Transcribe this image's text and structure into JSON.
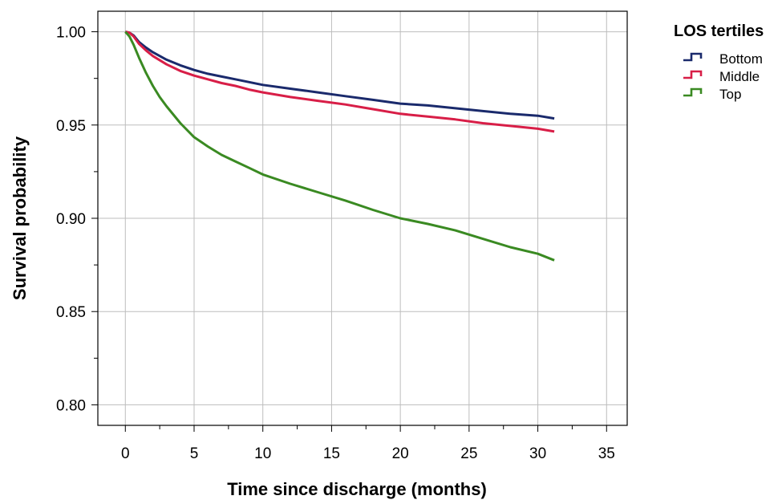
{
  "chart_data": {
    "type": "line",
    "title": "",
    "xlabel": "Time since discharge (months)",
    "ylabel": "Survival probability",
    "xlim": [
      -2,
      36.5
    ],
    "ylim": [
      0.789,
      1.011
    ],
    "x_ticks": [
      0,
      5,
      10,
      15,
      20,
      25,
      30,
      35
    ],
    "x_tick_labels": [
      "0",
      "5",
      "10",
      "15",
      "20",
      "25",
      "30",
      "35"
    ],
    "x_minor_ticks": [
      2.5,
      7.5,
      12.5,
      17.5,
      22.5,
      27.5,
      32.5
    ],
    "y_ticks": [
      0.8,
      0.85,
      0.9,
      0.95,
      1.0
    ],
    "y_tick_labels": [
      "0.80",
      "0.85",
      "0.90",
      "0.95",
      "1.00"
    ],
    "y_minor_ticks": [
      0.825,
      0.875,
      0.925,
      0.975
    ],
    "grid": true,
    "legend": {
      "title": "LOS tertiles",
      "placement": "outside-top-right",
      "entries": [
        "Bottom",
        "Middle",
        "Top"
      ]
    },
    "series": [
      {
        "name": "Bottom",
        "color": "#1a2a6c",
        "x": [
          0,
          0.3,
          0.6,
          1,
          1.5,
          2,
          3,
          4,
          5,
          6,
          7,
          8,
          9,
          10,
          12,
          14,
          16,
          18,
          20,
          22,
          24,
          26,
          28,
          30,
          31.2
        ],
        "y": [
          1.0,
          0.9995,
          0.998,
          0.9945,
          0.9915,
          0.989,
          0.985,
          0.982,
          0.9795,
          0.9775,
          0.976,
          0.9745,
          0.973,
          0.9715,
          0.9695,
          0.9675,
          0.9655,
          0.9635,
          0.9615,
          0.9605,
          0.959,
          0.9575,
          0.956,
          0.955,
          0.9535
        ]
      },
      {
        "name": "Middle",
        "color": "#d81e47",
        "x": [
          0,
          0.3,
          0.6,
          1,
          1.5,
          2,
          3,
          4,
          5,
          6,
          7,
          8,
          9,
          10,
          12,
          14,
          16,
          18,
          20,
          22,
          24,
          26,
          28,
          30,
          31.2
        ],
        "y": [
          1.0,
          0.9995,
          0.9975,
          0.9935,
          0.99,
          0.987,
          0.9825,
          0.979,
          0.9765,
          0.9745,
          0.9725,
          0.971,
          0.969,
          0.9675,
          0.965,
          0.963,
          0.961,
          0.9585,
          0.956,
          0.9545,
          0.953,
          0.951,
          0.9495,
          0.948,
          0.9465
        ]
      },
      {
        "name": "Top",
        "color": "#3a8a22",
        "x": [
          0,
          0.3,
          0.6,
          1,
          1.5,
          2,
          2.5,
          3,
          4,
          5,
          6,
          7,
          8,
          9,
          10,
          12,
          14,
          16,
          18,
          20,
          22,
          24,
          26,
          28,
          30,
          31.2
        ],
        "y": [
          1.0,
          0.9975,
          0.993,
          0.986,
          0.978,
          0.971,
          0.965,
          0.96,
          0.951,
          0.9435,
          0.9385,
          0.934,
          0.9305,
          0.927,
          0.9235,
          0.9185,
          0.914,
          0.9095,
          0.9045,
          0.9,
          0.897,
          0.8935,
          0.889,
          0.8845,
          0.881,
          0.8775
        ]
      }
    ]
  }
}
